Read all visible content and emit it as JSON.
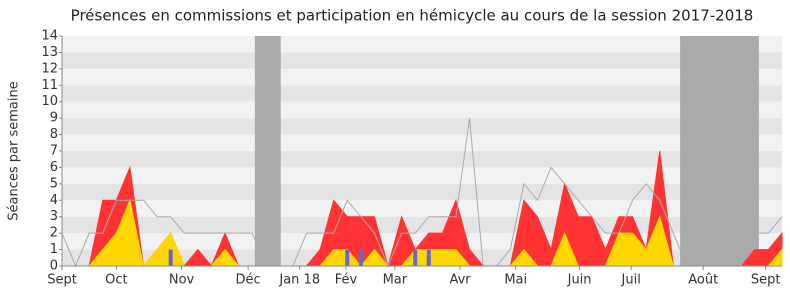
{
  "chart_data": {
    "type": "area",
    "title": "Présences en commissions et participation en hémicycle au cours de la session 2017-2018",
    "y_label": "Séances par semaine",
    "x": [
      0,
      1,
      2,
      3,
      4,
      5,
      6,
      7,
      8,
      9,
      10,
      11,
      12,
      13,
      14,
      15,
      16,
      17,
      18,
      19,
      20,
      21,
      22,
      23,
      24,
      25,
      26,
      27,
      28,
      29,
      30,
      31,
      32,
      33,
      34,
      35,
      36,
      37,
      38,
      39,
      40,
      41,
      42,
      43,
      44,
      45,
      46,
      47,
      48,
      49,
      50,
      51,
      52,
      53
    ],
    "xlim": [
      0,
      53
    ],
    "xticks": [
      {
        "value": 0,
        "label": "Sept"
      },
      {
        "value": 4,
        "label": "Oct"
      },
      {
        "value": 8.8,
        "label": "Nov"
      },
      {
        "value": 13.7,
        "label": "Déc"
      },
      {
        "value": 17.5,
        "label": "Jan 18"
      },
      {
        "value": 20.9,
        "label": "Fév"
      },
      {
        "value": 24.5,
        "label": "Mar"
      },
      {
        "value": 29.3,
        "label": "Avr"
      },
      {
        "value": 33.4,
        "label": "Mai"
      },
      {
        "value": 38.1,
        "label": "Juin"
      },
      {
        "value": 41.9,
        "label": "Juil"
      },
      {
        "value": 47.2,
        "label": "Août"
      },
      {
        "value": 51.8,
        "label": "Sept"
      }
    ],
    "ylim": [
      0,
      14
    ],
    "yticks": [
      0,
      1,
      2,
      3,
      4,
      5,
      6,
      7,
      8,
      9,
      10,
      11,
      12,
      13,
      14
    ],
    "grid": "bands",
    "vacations": [
      [
        14.2,
        16.1
      ],
      [
        45.5,
        51.3
      ]
    ],
    "vacation_color": "#aaaaaa",
    "series": [
      {
        "kind": "area",
        "color": "#ff3333",
        "values": [
          0,
          0,
          0,
          4,
          4,
          6,
          0,
          1,
          2,
          0,
          1,
          0,
          2,
          0,
          0,
          0,
          0,
          0,
          0,
          1,
          4,
          3,
          3,
          3,
          0,
          3,
          1,
          2,
          2,
          4,
          1,
          0,
          0,
          0,
          4,
          3,
          1,
          5,
          3,
          3,
          1,
          3,
          3,
          1,
          7,
          0,
          0,
          0,
          0,
          0,
          0,
          1,
          1,
          2
        ]
      },
      {
        "kind": "area",
        "color": "#ffd700",
        "values": [
          0,
          0,
          0,
          1,
          2,
          4,
          0,
          1,
          2,
          0,
          0,
          0,
          1,
          0,
          0,
          0,
          0,
          0,
          0,
          0,
          1,
          1,
          0,
          1,
          0,
          0,
          1,
          1,
          1,
          1,
          0,
          0,
          0,
          0,
          1,
          0,
          0,
          2,
          0,
          0,
          0,
          2,
          2,
          1,
          3,
          0,
          0,
          0,
          0,
          0,
          0,
          0,
          0,
          1
        ]
      },
      {
        "kind": "line",
        "color": "#aaaaaa",
        "values": [
          2,
          0,
          2,
          2,
          4,
          4,
          4,
          3,
          3,
          2,
          2,
          2,
          2,
          2,
          2,
          0,
          0,
          0,
          2,
          2,
          2,
          4,
          3,
          2,
          0,
          2,
          2,
          3,
          3,
          3,
          9,
          0,
          0,
          1,
          5,
          4,
          6,
          5,
          4,
          3,
          2,
          2,
          4,
          5,
          4,
          2,
          0,
          0,
          0,
          0,
          0,
          2,
          2,
          3
        ]
      },
      {
        "kind": "bar",
        "color": "#6666cc",
        "values": [
          0,
          0,
          0,
          0,
          0,
          0,
          0,
          0,
          1,
          0,
          0,
          0,
          0,
          0,
          0,
          0,
          0,
          0,
          0,
          0,
          0,
          1,
          1,
          0,
          0,
          0,
          1,
          1,
          0,
          0,
          0,
          0,
          0,
          0,
          0,
          0,
          0,
          0,
          0,
          0,
          0,
          0,
          0,
          0,
          0,
          0,
          0,
          0,
          0,
          0,
          0,
          0,
          0,
          0
        ]
      }
    ]
  }
}
